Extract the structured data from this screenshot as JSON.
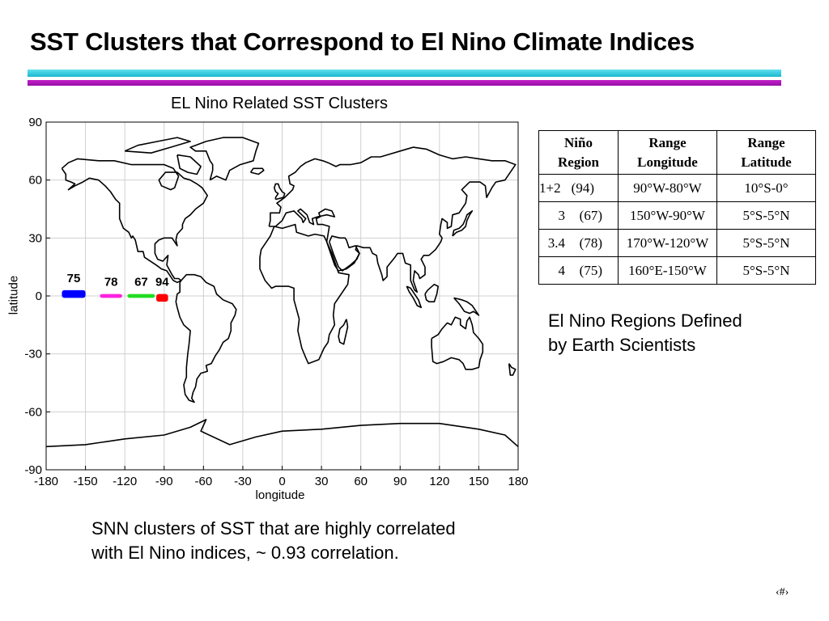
{
  "slide": {
    "title": "SST Clusters that Correspond to El Nino Climate Indices",
    "page_number": "‹#›",
    "accent_colors": [
      "#1ab8cf",
      "#a616b0"
    ]
  },
  "chart_data": {
    "type": "scatter",
    "title": "EL Nino Related SST Clusters",
    "xlabel": "longitude",
    "ylabel": "latitude",
    "xlim": [
      -180,
      180
    ],
    "ylim": [
      -90,
      90
    ],
    "x_ticks": [
      -180,
      -150,
      -120,
      -90,
      -60,
      -30,
      0,
      30,
      60,
      90,
      120,
      150,
      180
    ],
    "y_ticks": [
      90,
      60,
      30,
      0,
      -30,
      -60,
      -90
    ],
    "x_tick_labels": [
      "-180",
      "-150",
      "-120",
      "-90",
      "-60",
      "-30",
      "0",
      "30",
      "60",
      "90",
      "120",
      "150",
      "180"
    ],
    "y_tick_labels": [
      "90",
      "60",
      "30",
      "0",
      "-30",
      "-60",
      "-90"
    ],
    "grid": true,
    "background": "world coastline map",
    "series": [
      {
        "label": "75",
        "color": "#0000ff",
        "lon_range": [
          -168,
          -150
        ],
        "lat_range": [
          -1,
          3
        ]
      },
      {
        "label": "78",
        "color": "#ff22e0",
        "lon_range": [
          -139,
          -122
        ],
        "lat_range": [
          -1,
          1
        ]
      },
      {
        "label": "67",
        "color": "#22dd22",
        "lon_range": [
          -118,
          -97
        ],
        "lat_range": [
          -1,
          1
        ]
      },
      {
        "label": "94",
        "color": "#ff0000",
        "lon_range": [
          -96,
          -87
        ],
        "lat_range": [
          -3,
          1
        ]
      }
    ]
  },
  "table": {
    "headers": [
      [
        "Niño",
        "Region"
      ],
      [
        "Range",
        "Longitude"
      ],
      [
        "Range",
        "Latitude"
      ]
    ],
    "rows": [
      {
        "region": "1+2",
        "cluster": "(94)",
        "longitude": "90°W-80°W",
        "latitude": "10°S-0°"
      },
      {
        "region": "3",
        "cluster": "(67)",
        "longitude": "150°W-90°W",
        "latitude": "5°S-5°N"
      },
      {
        "region": "3.4",
        "cluster": "(78)",
        "longitude": "170°W-120°W",
        "latitude": "5°S-5°N"
      },
      {
        "region": "4",
        "cluster": "(75)",
        "longitude": "160°E-150°W",
        "latitude": "5°S-5°N"
      }
    ]
  },
  "captions": {
    "right": [
      "El Nino Regions Defined",
      "by Earth Scientists"
    ],
    "bottom": [
      "SNN clusters of SST that are highly correlated",
      "with El Nino indices, ~ 0.93 correlation."
    ]
  }
}
